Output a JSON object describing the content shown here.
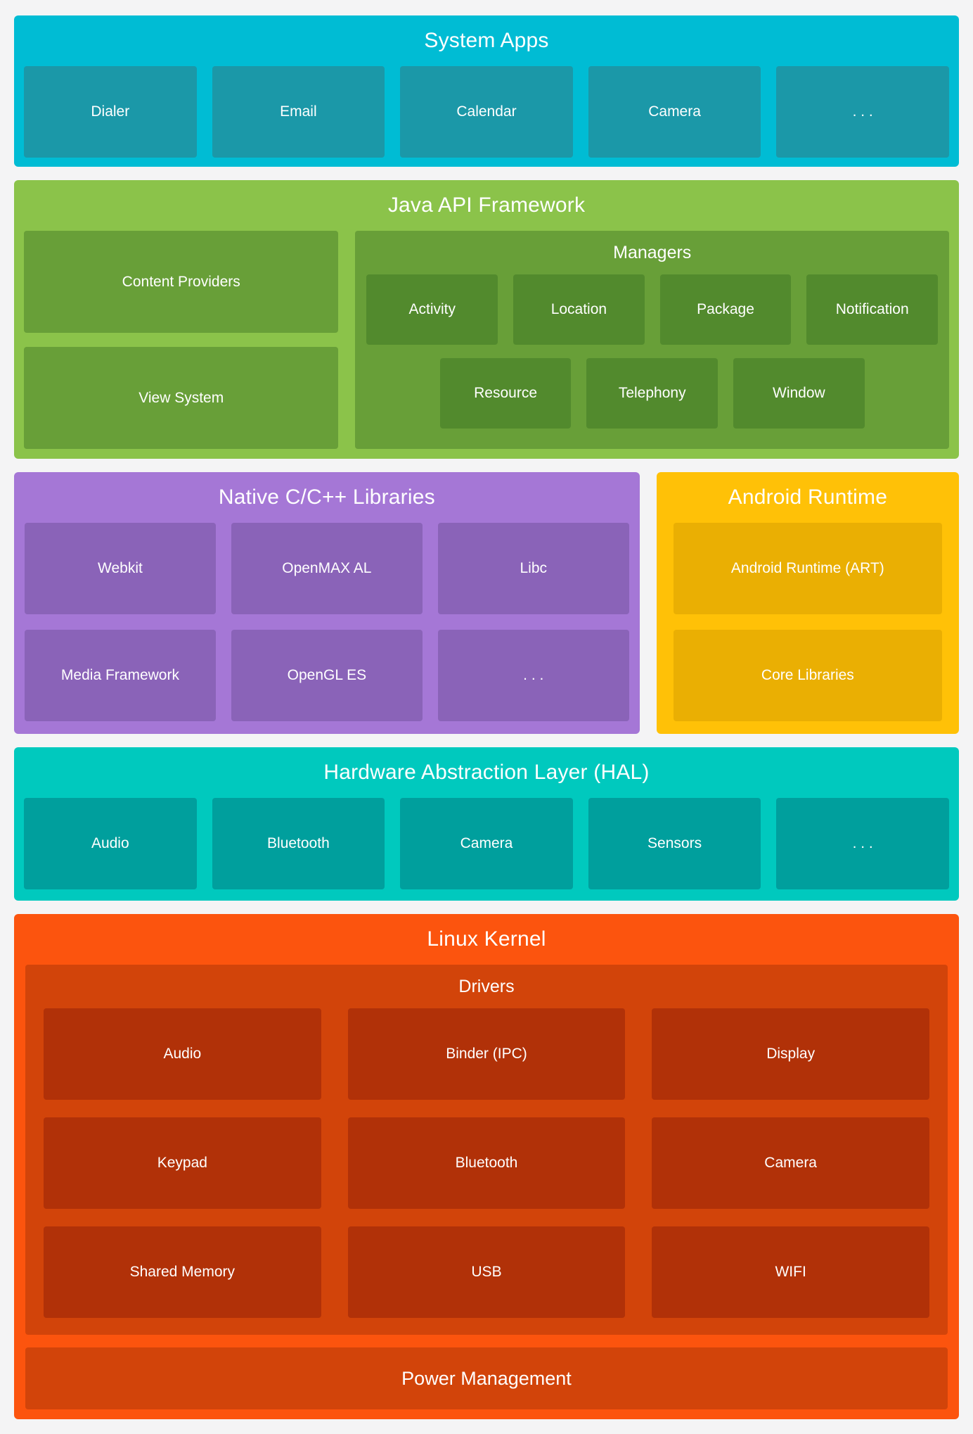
{
  "colors": {
    "page_bg": "#F4F4F5",
    "text": "#FFFFFF",
    "system_apps_bg": "#00BCD4",
    "system_apps_box": "#1B98A8",
    "java_bg": "#8BC34A",
    "java_box": "#689F38",
    "java_inner_box": "#528A2D",
    "native_bg": "#A577D6",
    "native_box": "#8A63B8",
    "runtime_bg": "#FFC107",
    "runtime_box": "#EAAF03",
    "hal_bg": "#00C9BE",
    "hal_box": "#009F9D",
    "kernel_bg": "#FC540E",
    "kernel_box": "#D2440A",
    "kernel_inner_box": "#B13108"
  },
  "sections": {
    "system_apps": {
      "title": "System Apps",
      "boxes": [
        "Dialer",
        "Email",
        "Calendar",
        "Camera",
        ". . ."
      ]
    },
    "java_api": {
      "title": "Java API Framework",
      "left_boxes": [
        "Content Providers",
        "View System"
      ],
      "managers": {
        "title": "Managers",
        "row1": [
          "Activity",
          "Location",
          "Package",
          "Notification"
        ],
        "row2": [
          "Resource",
          "Telephony",
          "Window"
        ]
      }
    },
    "native_libs": {
      "title": "Native C/C++ Libraries",
      "row1": [
        "Webkit",
        "OpenMAX AL",
        "Libc"
      ],
      "row2": [
        "Media Framework",
        "OpenGL ES",
        ". . ."
      ]
    },
    "android_runtime": {
      "title": "Android Runtime",
      "boxes": [
        "Android Runtime (ART)",
        "Core Libraries"
      ]
    },
    "hal": {
      "title": "Hardware Abstraction Layer (HAL)",
      "boxes": [
        "Audio",
        "Bluetooth",
        "Camera",
        "Sensors",
        ". . ."
      ]
    },
    "linux_kernel": {
      "title": "Linux Kernel",
      "drivers": {
        "title": "Drivers",
        "grid": [
          "Audio",
          "Binder (IPC)",
          "Display",
          "Keypad",
          "Bluetooth",
          "Camera",
          "Shared Memory",
          "USB",
          "WIFI"
        ]
      },
      "power_label": "Power Management"
    }
  }
}
